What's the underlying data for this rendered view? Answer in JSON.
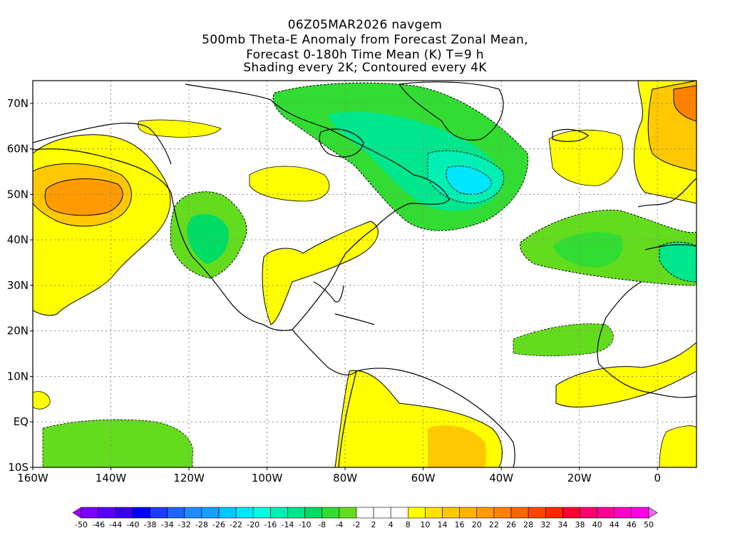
{
  "title": {
    "line1": "06Z05MAR2026 navgem",
    "line2": "500mb Theta-E Anomaly from Forecast Zonal Mean,",
    "line3": "Forecast 0-180h Time Mean (K) T=9 h",
    "line4": "Shading every 2K; Contoured every 4K"
  },
  "map": {
    "lon_range": [
      -160,
      10
    ],
    "lat_range": [
      -10,
      75
    ],
    "lat_labels": [
      "70N",
      "60N",
      "50N",
      "40N",
      "30N",
      "20N",
      "10N",
      "EQ",
      "10S"
    ],
    "lat_values": [
      70,
      60,
      50,
      40,
      30,
      20,
      10,
      0,
      -10
    ],
    "lon_labels": [
      "160W",
      "140W",
      "120W",
      "100W",
      "80W",
      "60W",
      "40W",
      "20W",
      "0"
    ],
    "lon_values": [
      -160,
      -140,
      -120,
      -100,
      -80,
      -60,
      -40,
      -20,
      0
    ],
    "grid": "dotted"
  },
  "colorbar": {
    "labels": [
      "-50",
      "-46",
      "-44",
      "-40",
      "-38",
      "-34",
      "-32",
      "-28",
      "-26",
      "-22",
      "-20",
      "-16",
      "-14",
      "-10",
      "-8",
      "-4",
      "-2",
      "2",
      "4",
      "8",
      "10",
      "14",
      "16",
      "20",
      "22",
      "26",
      "28",
      "32",
      "34",
      "38",
      "40",
      "44",
      "46",
      "50"
    ],
    "colors": [
      "#a000ff",
      "#7a00ff",
      "#5a00ff",
      "#3a00e8",
      "#0000ff",
      "#1e3cff",
      "#1e64ff",
      "#1e8cff",
      "#14a0ff",
      "#00c8ff",
      "#00e6ff",
      "#00ffe0",
      "#00f0b4",
      "#00e68c",
      "#00dc64",
      "#32dc32",
      "#64dc1e",
      "#ffffff",
      "#ffffff",
      "#ffffff",
      "#ffff00",
      "#ffe100",
      "#ffc800",
      "#ffb400",
      "#ff9b00",
      "#ff8200",
      "#ff6400",
      "#ff4600",
      "#ff2800",
      "#ff0032",
      "#ff006e",
      "#ff0096",
      "#ff00c8",
      "#ff00e6",
      "#ff64ff"
    ]
  },
  "regions": [
    {
      "name": "gulf-of-alaska-warm-anomaly",
      "level": "yellow",
      "label": ""
    },
    {
      "name": "labrador-cold-anomaly",
      "level": "cyan",
      "label": ""
    },
    {
      "name": "europe-warm-anomaly",
      "level": "orange",
      "label": ""
    }
  ]
}
